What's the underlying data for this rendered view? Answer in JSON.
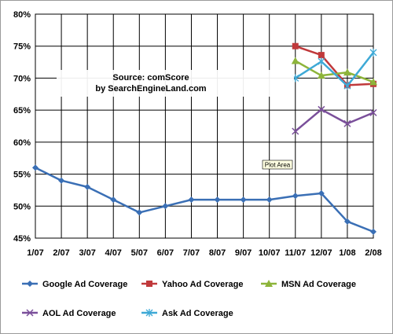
{
  "chart_data": {
    "type": "line",
    "categories": [
      "1/07",
      "2/07",
      "3/07",
      "4/07",
      "5/07",
      "6/07",
      "7/07",
      "8/07",
      "9/07",
      "10/07",
      "11/07",
      "12/07",
      "1/08",
      "2/08"
    ],
    "ylim": [
      45,
      80
    ],
    "yticks": [
      45,
      50,
      55,
      60,
      65,
      70,
      75,
      80
    ],
    "ytick_suffix": "%",
    "grid": true,
    "legend_position": "bottom",
    "annotation": {
      "line1": "Source: comScore",
      "line2": "by SearchEngineLand.com"
    },
    "tooltip": "Plot Area",
    "series": [
      {
        "name": "Google Ad Coverage",
        "color": "#3a6fb5",
        "marker": "diamond",
        "values": [
          56,
          54,
          53,
          51,
          49,
          50,
          51,
          51,
          51,
          51,
          51.6,
          52,
          47.6,
          46
        ]
      },
      {
        "name": "Yahoo Ad Coverage",
        "color": "#c0393b",
        "marker": "square",
        "values": [
          null,
          null,
          null,
          null,
          null,
          null,
          null,
          null,
          null,
          null,
          75,
          73.6,
          68.9,
          69.1
        ]
      },
      {
        "name": "MSN Ad Coverage",
        "color": "#8db43a",
        "marker": "triangle",
        "values": [
          null,
          null,
          null,
          null,
          null,
          null,
          null,
          null,
          null,
          null,
          72.7,
          70.4,
          70.9,
          69.4
        ]
      },
      {
        "name": "AOL Ad Coverage",
        "color": "#7a4f9a",
        "marker": "x",
        "values": [
          null,
          null,
          null,
          null,
          null,
          null,
          null,
          null,
          null,
          null,
          61.7,
          65.1,
          62.9,
          64.6
        ]
      },
      {
        "name": "Ask Ad Coverage",
        "color": "#3ea9d6",
        "marker": "star",
        "values": [
          null,
          null,
          null,
          null,
          null,
          null,
          null,
          null,
          null,
          null,
          70,
          72.6,
          68.8,
          74
        ]
      }
    ]
  }
}
